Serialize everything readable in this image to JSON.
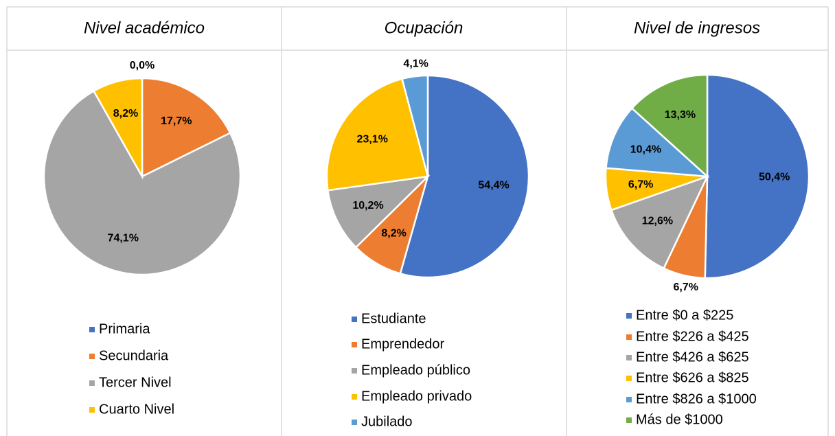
{
  "chart_data": [
    {
      "type": "pie",
      "title": "Nivel académico",
      "categories": [
        "Primaria",
        "Secundaria",
        "Tercer Nivel",
        "Cuarto Nivel"
      ],
      "values": [
        0.0,
        17.7,
        74.1,
        8.2
      ],
      "value_labels": [
        "0,0%",
        "17,7%",
        "74,1%",
        "8,2%"
      ],
      "colors": [
        "#4472c4",
        "#ed7d31",
        "#a5a5a5",
        "#ffc000"
      ]
    },
    {
      "type": "pie",
      "title": "Ocupación",
      "categories": [
        "Estudiante",
        "Emprendedor",
        "Empleado público",
        "Empleado privado",
        "Jubilado"
      ],
      "values": [
        54.4,
        8.2,
        10.2,
        23.1,
        4.1
      ],
      "value_labels": [
        "54,4%",
        "8,2%",
        "10,2%",
        "23,1%",
        "4,1%"
      ],
      "colors": [
        "#4472c4",
        "#ed7d31",
        "#a5a5a5",
        "#ffc000",
        "#5b9bd5"
      ]
    },
    {
      "type": "pie",
      "title": "Nivel de ingresos",
      "categories": [
        "Entre $0 a $225",
        "Entre $226 a $425",
        "Entre $426 a $625",
        "Entre $626 a $825",
        "Entre $826 a $1000",
        "Más de $1000"
      ],
      "values": [
        50.4,
        6.7,
        12.6,
        6.7,
        10.4,
        13.3
      ],
      "value_labels": [
        "50,4%",
        "6,7%",
        "12,6%",
        "6,7%",
        "10,4%",
        "13,3%"
      ],
      "colors": [
        "#4472c4",
        "#ed7d31",
        "#a5a5a5",
        "#ffc000",
        "#5b9bd5",
        "#70ad47"
      ]
    }
  ]
}
